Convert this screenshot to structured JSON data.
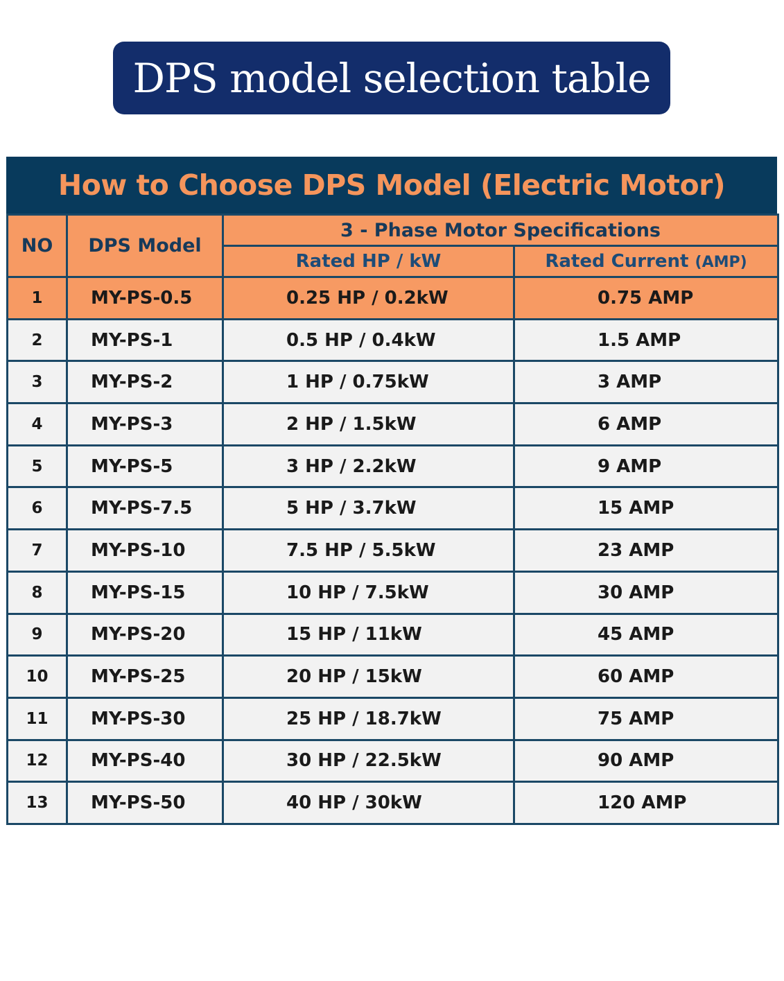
{
  "title": "DPS model selection table",
  "banner": "How to Choose DPS Model (Electric Motor)",
  "headers": {
    "no": "NO",
    "model": "DPS Model",
    "group": "3 - Phase Motor Specifications",
    "hp": "Rated HP / kW",
    "current": "Rated Current",
    "current_unit": "(AMP)"
  },
  "colors": {
    "title_bg": "#132d6b",
    "banner_bg": "#083a5c",
    "accent_orange": "#f79a63",
    "row_bg": "#f2f2f2",
    "border": "#1b4866"
  },
  "rows": [
    {
      "no": "1",
      "model": "MY-PS-0.5",
      "hp": "0.25 HP / 0.2kW",
      "amp": "0.75 AMP",
      "highlight": true
    },
    {
      "no": "2",
      "model": "MY-PS-1",
      "hp": "0.5 HP / 0.4kW",
      "amp": "1.5 AMP"
    },
    {
      "no": "3",
      "model": "MY-PS-2",
      "hp": "1 HP / 0.75kW",
      "amp": "3 AMP"
    },
    {
      "no": "4",
      "model": "MY-PS-3",
      "hp": "2 HP / 1.5kW",
      "amp": "6 AMP"
    },
    {
      "no": "5",
      "model": "MY-PS-5",
      "hp": "3 HP / 2.2kW",
      "amp": "9 AMP"
    },
    {
      "no": "6",
      "model": "MY-PS-7.5",
      "hp": "5 HP / 3.7kW",
      "amp": "15 AMP"
    },
    {
      "no": "7",
      "model": "MY-PS-10",
      "hp": "7.5 HP / 5.5kW",
      "amp": "23 AMP"
    },
    {
      "no": "8",
      "model": "MY-PS-15",
      "hp": "10 HP / 7.5kW",
      "amp": "30 AMP"
    },
    {
      "no": "9",
      "model": "MY-PS-20",
      "hp": "15 HP / 11kW",
      "amp": "45 AMP"
    },
    {
      "no": "10",
      "model": "MY-PS-25",
      "hp": "20 HP / 15kW",
      "amp": "60 AMP"
    },
    {
      "no": "11",
      "model": "MY-PS-30",
      "hp": "25 HP / 18.7kW",
      "amp": "75 AMP"
    },
    {
      "no": "12",
      "model": "MY-PS-40",
      "hp": "30 HP / 22.5kW",
      "amp": "90 AMP"
    },
    {
      "no": "13",
      "model": "MY-PS-50",
      "hp": "40 HP / 30kW",
      "amp": "120 AMP"
    }
  ]
}
